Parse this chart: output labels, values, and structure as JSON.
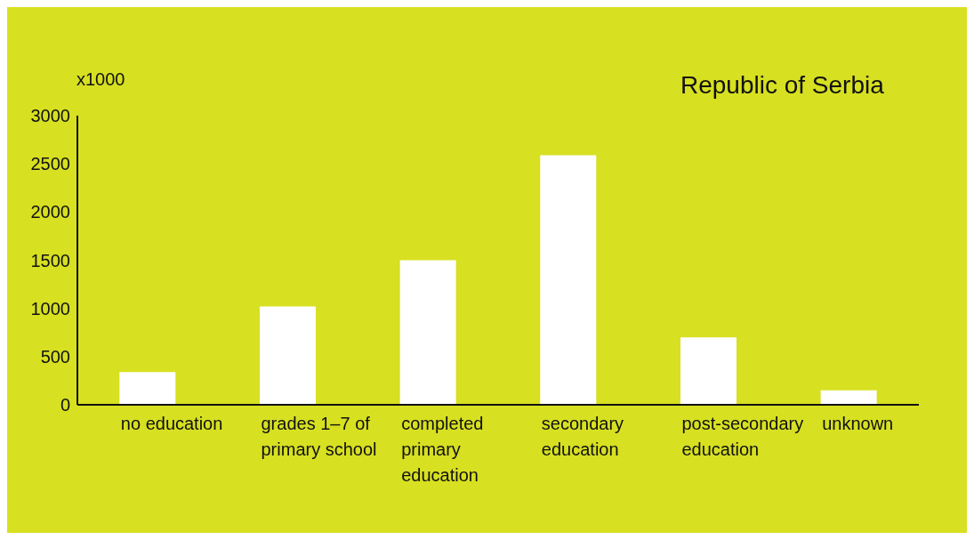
{
  "chart_data": {
    "type": "bar",
    "title": "Republic of Serbia",
    "ylabel": "x1000",
    "categories": [
      "no education",
      "grades 1–7 of primary school",
      "completed primary education",
      "secondary education",
      "post-secondary education",
      "unknown"
    ],
    "values": [
      340,
      1020,
      1500,
      2590,
      700,
      150
    ],
    "color": "#ffffff",
    "ylim": [
      0,
      3000
    ],
    "yticks": [
      0,
      500,
      1000,
      1500,
      2000,
      2500,
      3000
    ]
  }
}
